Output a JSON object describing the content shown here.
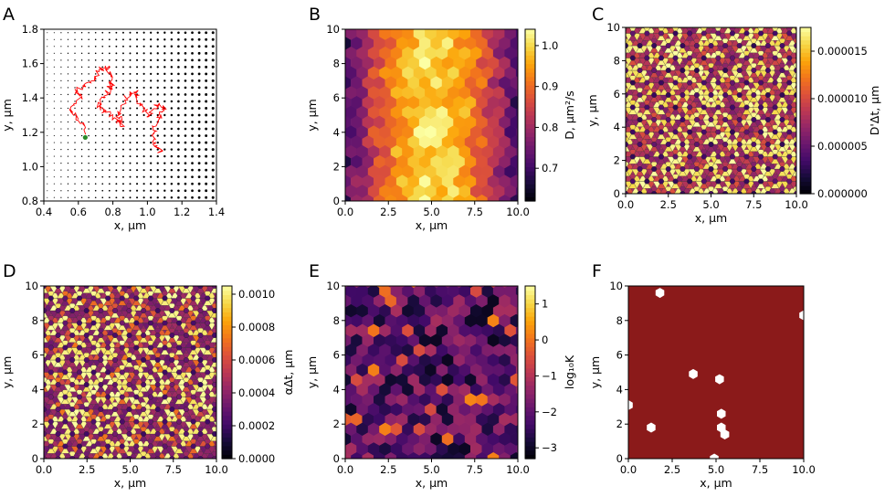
{
  "colors": {
    "trajectory": "#ff0000",
    "start_point": "#2a8a2a",
    "panel_f_fill": "#8b1a1a",
    "panel_f_holes": "#ffffff",
    "cell_edges": "#3a3a3a"
  },
  "colormap_name": "inferno",
  "chart_data": [
    {
      "panel": "A",
      "type": "scatter",
      "xlabel": "x, μm",
      "ylabel": "y, μm",
      "xlim": [
        0.4,
        1.4
      ],
      "ylim": [
        0.8,
        1.8
      ],
      "xticks": [
        "0.4",
        "0.6",
        "0.8",
        "1.0",
        "1.2",
        "1.4"
      ],
      "yticks": [
        "0.8",
        "1.0",
        "1.2",
        "1.4",
        "1.6",
        "1.8"
      ],
      "series": [
        {
          "name": "trajectory",
          "kind": "line",
          "color": "#ff0000",
          "points": [
            [
              0.65,
              1.2
            ],
            [
              0.6,
              1.28
            ],
            [
              0.55,
              1.34
            ],
            [
              0.62,
              1.4
            ],
            [
              0.58,
              1.45
            ],
            [
              0.66,
              1.48
            ],
            [
              0.7,
              1.53
            ],
            [
              0.75,
              1.58
            ],
            [
              0.78,
              1.55
            ],
            [
              0.8,
              1.48
            ],
            [
              0.76,
              1.42
            ],
            [
              0.72,
              1.35
            ],
            [
              0.78,
              1.3
            ],
            [
              0.85,
              1.24
            ],
            [
              0.83,
              1.3
            ],
            [
              0.88,
              1.4
            ],
            [
              0.93,
              1.44
            ],
            [
              0.96,
              1.37
            ],
            [
              1.0,
              1.3
            ],
            [
              1.05,
              1.36
            ],
            [
              1.1,
              1.34
            ],
            [
              1.06,
              1.28
            ],
            [
              1.03,
              1.2
            ],
            [
              1.05,
              1.12
            ],
            [
              1.08,
              1.08
            ]
          ]
        },
        {
          "name": "start",
          "kind": "point",
          "color": "#2a8a2a",
          "points": [
            [
              0.64,
              1.17
            ]
          ]
        }
      ]
    },
    {
      "panel": "B",
      "type": "heatmap",
      "xlabel": "x, μm",
      "ylabel": "y, μm",
      "xlim": [
        0,
        10
      ],
      "ylim": [
        0,
        10
      ],
      "xticks": [
        "0.0",
        "2.5",
        "5.0",
        "7.5",
        "10.0"
      ],
      "yticks": [
        "0",
        "2",
        "4",
        "6",
        "8",
        "10"
      ],
      "colorbar_label": "D, μm²/s",
      "colorbar_range": [
        0.62,
        1.04
      ],
      "colorbar_ticks": [
        "0.7",
        "0.8",
        "0.9",
        "1.0"
      ],
      "field": "D(x) ≈ 0.7 + 0.3·|sin(πx/10)|"
    },
    {
      "panel": "C",
      "type": "heatmap",
      "xlabel": "x, μm",
      "ylabel": "y, μm",
      "xlim": [
        0,
        10
      ],
      "ylim": [
        0,
        10
      ],
      "xticks": [
        "0.0",
        "2.5",
        "5.0",
        "7.5",
        "10.0"
      ],
      "yticks": [
        "0",
        "2",
        "4",
        "6",
        "8",
        "10"
      ],
      "colorbar_label": "D'Δt, μm",
      "colorbar_range": [
        0,
        1.75e-05
      ],
      "colorbar_ticks": [
        "0.000000",
        "0.000005",
        "0.000010",
        "0.000015"
      ]
    },
    {
      "panel": "D",
      "type": "heatmap",
      "xlabel": "x, μm",
      "ylabel": "y, μm",
      "xlim": [
        0,
        10
      ],
      "ylim": [
        0,
        10
      ],
      "xticks": [
        "0.0",
        "2.5",
        "5.0",
        "7.5",
        "10.0"
      ],
      "yticks": [
        "0",
        "2",
        "4",
        "6",
        "8",
        "10"
      ],
      "colorbar_label": "αΔt, μm",
      "colorbar_range": [
        0,
        0.00105
      ],
      "colorbar_ticks": [
        "0.0000",
        "0.0002",
        "0.0004",
        "0.0006",
        "0.0008",
        "0.0010"
      ]
    },
    {
      "panel": "E",
      "type": "heatmap",
      "xlabel": "x, μm",
      "ylabel": "y, μm",
      "xlim": [
        0,
        10
      ],
      "ylim": [
        0,
        10
      ],
      "xticks": [
        "0.0",
        "2.5",
        "5.0",
        "7.5",
        "10.0"
      ],
      "yticks": [
        "0",
        "2",
        "4",
        "6",
        "8",
        "10"
      ],
      "colorbar_label": "log₁₀K",
      "colorbar_range": [
        -3.3,
        1.5
      ],
      "colorbar_ticks": [
        "−3",
        "−2",
        "−1",
        "0",
        "1"
      ]
    },
    {
      "panel": "F",
      "type": "heatmap",
      "xlabel": "x, μm",
      "ylabel": "y, μm",
      "xlim": [
        0,
        10
      ],
      "ylim": [
        0,
        10
      ],
      "xticks": [
        "0.0",
        "2.5",
        "5.0",
        "7.5",
        "10.0"
      ],
      "yticks": [
        "0",
        "2",
        "4",
        "6",
        "8",
        "10"
      ],
      "empty_bins": [
        [
          1.8,
          9.6
        ],
        [
          0.0,
          3.1
        ],
        [
          10.0,
          8.3
        ],
        [
          3.7,
          4.9
        ],
        [
          5.2,
          4.6
        ],
        [
          5.3,
          2.6
        ],
        [
          5.3,
          1.8
        ],
        [
          5.5,
          1.4
        ],
        [
          1.3,
          1.8
        ],
        [
          4.9,
          0.0
        ]
      ]
    }
  ]
}
